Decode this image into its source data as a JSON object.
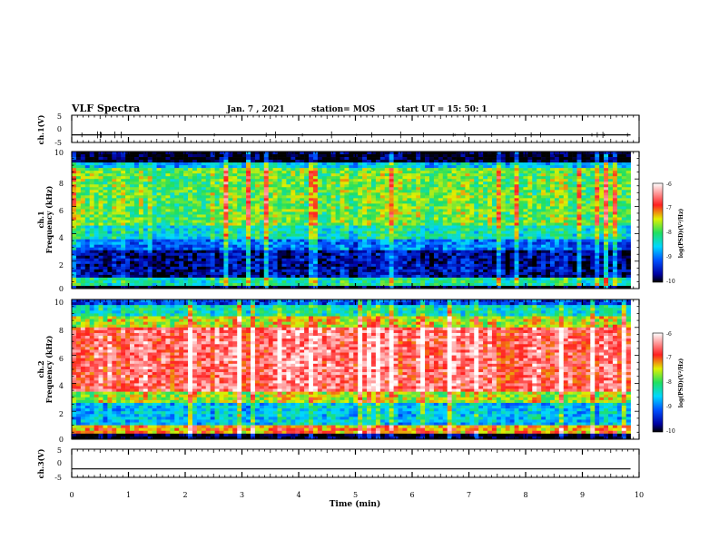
{
  "header": {
    "title": "VLF Spectra",
    "date": "Jan. 7 , 2021",
    "station": "station= MOS",
    "start_ut": "start UT =   15: 50: 1"
  },
  "chart_data": [
    {
      "type": "line",
      "ylabel": "ch.1(V)",
      "yticks": [
        "5",
        "0",
        "-5"
      ],
      "ylim": [
        -5,
        5
      ],
      "x": [
        0,
        9.85
      ],
      "values": [
        -2.2,
        -2.2
      ]
    },
    {
      "type": "heatmap",
      "ylabel_line1": "ch.1",
      "ylabel_line2": "Frequency (kHz)",
      "yticks": [
        "0",
        "2",
        "4",
        "6",
        "8",
        "10"
      ],
      "ylim": [
        0,
        10
      ],
      "xlim": [
        0,
        10
      ],
      "data_x_max": 9.85,
      "bands": [
        {
          "f0": 0.0,
          "f1": 0.3,
          "level": -10
        },
        {
          "f0": 0.3,
          "f1": 0.8,
          "level": -8.2
        },
        {
          "f0": 0.8,
          "f1": 2.8,
          "level": -9.6
        },
        {
          "f0": 2.8,
          "f1": 3.6,
          "level": -9.0
        },
        {
          "f0": 3.6,
          "f1": 4.6,
          "level": -8.3
        },
        {
          "f0": 4.6,
          "f1": 8.8,
          "level": -7.8
        },
        {
          "f0": 8.8,
          "f1": 9.2,
          "level": -8.6
        },
        {
          "f0": 9.2,
          "f1": 10.0,
          "level": -10
        }
      ],
      "colorbar": {
        "label": "log(PSD)(V²/Hz)",
        "ticks": [
          "-6",
          "-7",
          "-8",
          "-9",
          "-10"
        ],
        "range": [
          -10,
          -6
        ]
      }
    },
    {
      "type": "heatmap",
      "ylabel_line1": "ch.2",
      "ylabel_line2": "Frequency (kHz)",
      "yticks": [
        "0",
        "2",
        "4",
        "6",
        "8",
        "10"
      ],
      "ylim": [
        0,
        10
      ],
      "xlim": [
        0,
        10
      ],
      "data_x_max": 9.85,
      "bands": [
        {
          "f0": 0.0,
          "f1": 0.4,
          "level": -10
        },
        {
          "f0": 0.4,
          "f1": 1.0,
          "level": -7.2
        },
        {
          "f0": 1.0,
          "f1": 2.6,
          "level": -8.6
        },
        {
          "f0": 2.6,
          "f1": 3.4,
          "level": -7.6
        },
        {
          "f0": 3.4,
          "f1": 8.0,
          "level": -6.6
        },
        {
          "f0": 8.0,
          "f1": 8.9,
          "level": -7.5
        },
        {
          "f0": 8.9,
          "f1": 9.7,
          "level": -8.3
        },
        {
          "f0": 9.7,
          "f1": 10.0,
          "level": -9.2
        }
      ],
      "colorbar": {
        "label": "log(PSD)(V²/Hz)",
        "ticks": [
          "-6",
          "-7",
          "-8",
          "-9",
          "-10"
        ],
        "range": [
          -10,
          -6
        ]
      }
    },
    {
      "type": "line",
      "ylabel": "ch.3(V)",
      "yticks": [
        "5",
        "0",
        "-5"
      ],
      "ylim": [
        -5,
        5
      ],
      "x": [
        0,
        9.85
      ],
      "values": [
        -2.0,
        -2.0
      ]
    }
  ],
  "xaxis": {
    "label": "Time (min)",
    "ticks": [
      "0",
      "1",
      "2",
      "3",
      "4",
      "5",
      "6",
      "7",
      "8",
      "9",
      "10"
    ],
    "range": [
      0,
      10
    ]
  }
}
